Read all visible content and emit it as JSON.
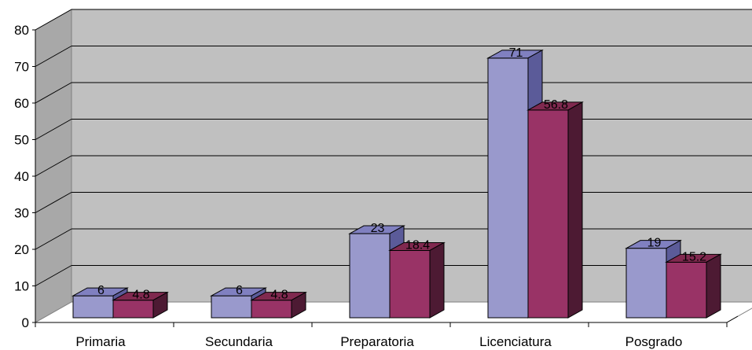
{
  "chart_data": {
    "type": "bar",
    "title": "",
    "xlabel": "",
    "ylabel": "",
    "categories": [
      "Primaria",
      "Secundaria",
      "Preparatoria",
      "Licenciatura",
      "Posgrado"
    ],
    "series": [
      {
        "values": [
          6,
          6,
          23,
          71,
          19
        ],
        "color": "#9999cc"
      },
      {
        "values": [
          4.8,
          4.8,
          18.4,
          56.8,
          15.2
        ],
        "color": "#993366"
      }
    ],
    "ylim": [
      0,
      80
    ],
    "yticks": [
      0,
      10,
      20,
      30,
      40,
      50,
      60,
      70,
      80
    ],
    "grid": true,
    "three_d": true,
    "wall_color": "#c0c0c0"
  }
}
